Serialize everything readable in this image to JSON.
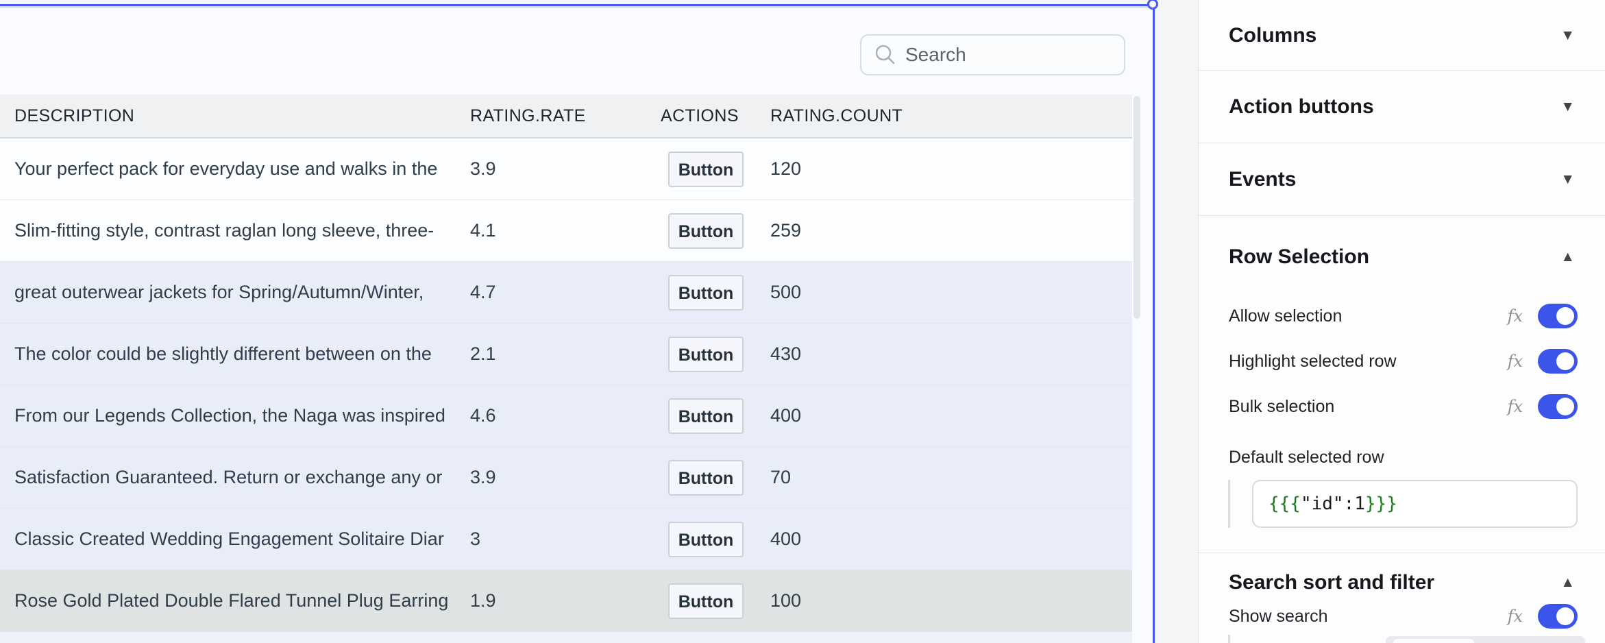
{
  "widget": {
    "search": {
      "placeholder": "Search"
    },
    "table": {
      "columns": [
        "DESCRIPTION",
        "RATING.RATE",
        "ACTIONS",
        "RATING.COUNT"
      ],
      "rows": [
        {
          "description": "Your perfect pack for everyday use and walks in the",
          "rate": "3.9",
          "action": "Button",
          "count": "120",
          "bg": "white"
        },
        {
          "description": "Slim-fitting style, contrast raglan long sleeve, three-",
          "rate": "4.1",
          "action": "Button",
          "count": "259",
          "bg": "white"
        },
        {
          "description": "great outerwear jackets for Spring/Autumn/Winter,",
          "rate": "4.7",
          "action": "Button",
          "count": "500",
          "bg": "lavender"
        },
        {
          "description": "The color could be slightly different between on the",
          "rate": "2.1",
          "action": "Button",
          "count": "430",
          "bg": "lavender"
        },
        {
          "description": "From our Legends Collection, the Naga was inspired",
          "rate": "4.6",
          "action": "Button",
          "count": "400",
          "bg": "lavender"
        },
        {
          "description": "Satisfaction Guaranteed. Return or exchange any or",
          "rate": "3.9",
          "action": "Button",
          "count": "70",
          "bg": "lavender"
        },
        {
          "description": "Classic Created Wedding Engagement Solitaire Diar",
          "rate": "3",
          "action": "Button",
          "count": "400",
          "bg": "lavender"
        },
        {
          "description": "Rose Gold Plated Double Flared Tunnel Plug Earring",
          "rate": "1.9",
          "action": "Button",
          "count": "100",
          "bg": "gray"
        }
      ]
    }
  },
  "panel": {
    "sections": [
      {
        "title": "Columns",
        "expanded": false,
        "items": []
      },
      {
        "title": "Action buttons",
        "expanded": false,
        "items": []
      },
      {
        "title": "Events",
        "expanded": false,
        "items": []
      },
      {
        "title": "Row Selection",
        "expanded": true,
        "items": [
          {
            "type": "toggle",
            "label": "Allow selection",
            "fx": "fx",
            "on": true
          },
          {
            "type": "toggle",
            "label": "Highlight selected row",
            "fx": "fx",
            "on": true
          },
          {
            "type": "toggle",
            "label": "Bulk selection",
            "fx": "fx",
            "on": true
          },
          {
            "type": "expression",
            "label": "Default selected row",
            "open": "{{{",
            "body": "\"id\":1",
            "close": "}}}"
          }
        ]
      },
      {
        "title": "Search sort and filter",
        "expanded": true,
        "items": [
          {
            "type": "toggle",
            "label": "Show search",
            "fx": "fx",
            "on": true
          }
        ]
      }
    ]
  },
  "icons": {
    "caret_collapsed": "▼",
    "caret_expanded": "▲"
  },
  "colors": {
    "accent_toggle": "#3b54e9",
    "selection_border": "#4659ef",
    "expression_green": "#197b1e",
    "row_highlight": "#e9ecf9",
    "row_hover_gray": "#dfe3e3",
    "header_bg": "#f0f1f2"
  }
}
